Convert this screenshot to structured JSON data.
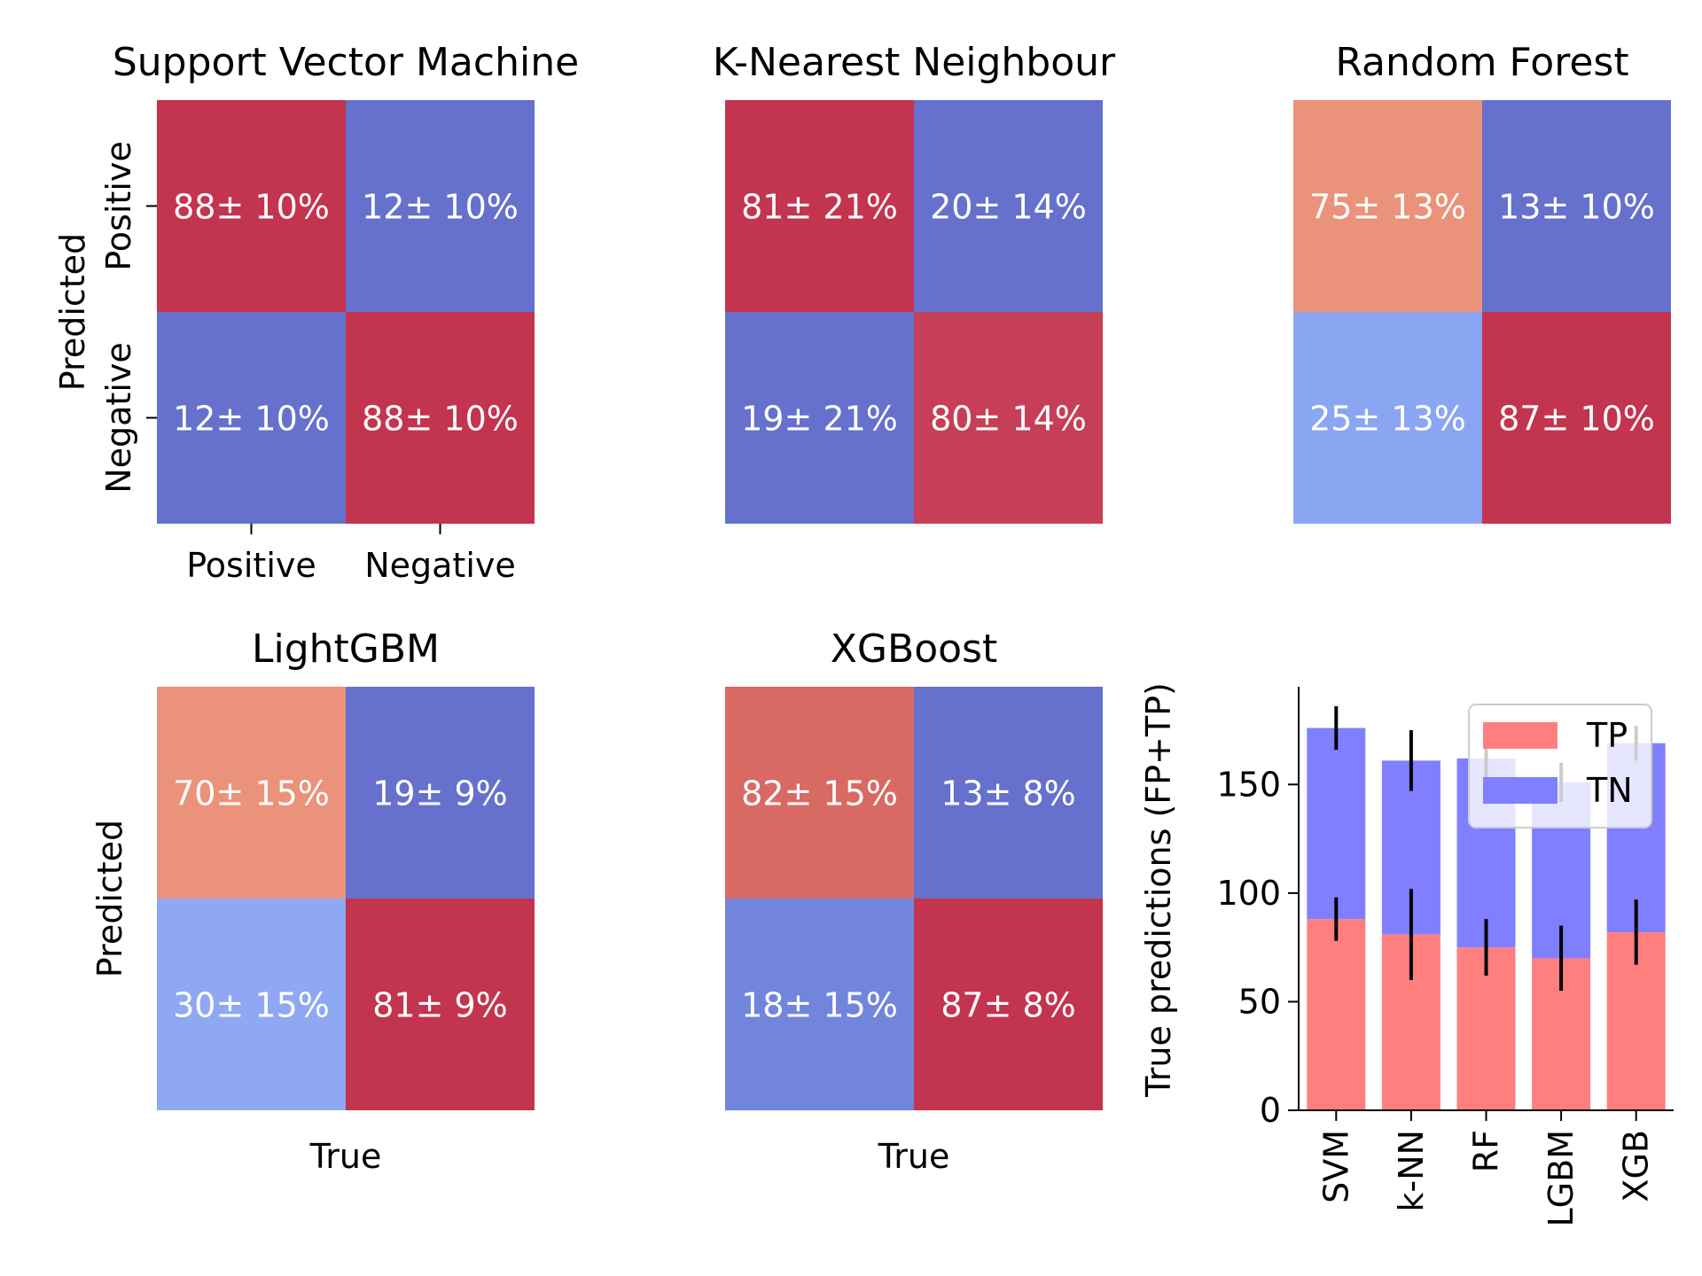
{
  "chart_data": [
    {
      "type": "heatmap",
      "title": "Support Vector Machine",
      "xlabel": "",
      "ylabel": "Predicted",
      "xticklabels": [
        "Positive",
        "Negative"
      ],
      "yticklabels": [
        "Positive",
        "Negative"
      ],
      "cells": [
        [
          "88± 10%",
          "12± 10%"
        ],
        [
          "12± 10%",
          "88± 10%"
        ]
      ],
      "colors": [
        [
          "#c3344f",
          "#6571cc"
        ],
        [
          "#6571cc",
          "#c3344f"
        ]
      ]
    },
    {
      "type": "heatmap",
      "title": "K-Nearest Neighbour",
      "xlabel": "",
      "ylabel": "",
      "xticklabels": [],
      "yticklabels": [],
      "cells": [
        [
          "81± 21%",
          "20± 14%"
        ],
        [
          "19± 21%",
          "80± 14%"
        ]
      ],
      "colors": [
        [
          "#c3344f",
          "#6571cc"
        ],
        [
          "#6571cc",
          "#c63f56"
        ]
      ]
    },
    {
      "type": "heatmap",
      "title": "Random Forest",
      "xlabel": "",
      "ylabel": "",
      "xticklabels": [],
      "yticklabels": [],
      "cells": [
        [
          "75± 13%",
          "13± 10%"
        ],
        [
          "25± 13%",
          "87± 10%"
        ]
      ],
      "colors": [
        [
          "#eb927a",
          "#6571cc"
        ],
        [
          "#8aa5f2",
          "#c3344f"
        ]
      ]
    },
    {
      "type": "heatmap",
      "title": "LightGBM",
      "xlabel": "True",
      "ylabel": "Predicted",
      "xticklabels": [],
      "yticklabels": [],
      "cells": [
        [
          "70± 15%",
          "19± 9%"
        ],
        [
          "30± 15%",
          "81± 9%"
        ]
      ],
      "colors": [
        [
          "#eb927a",
          "#6571cc"
        ],
        [
          "#8ea8f4",
          "#c3344f"
        ]
      ]
    },
    {
      "type": "heatmap",
      "title": "XGBoost",
      "xlabel": "True",
      "ylabel": "",
      "xticklabels": [],
      "yticklabels": [],
      "cells": [
        [
          "82± 15%",
          "13± 8%"
        ],
        [
          "18± 15%",
          "87± 8%"
        ]
      ],
      "colors": [
        [
          "#d96a63",
          "#6571cc"
        ],
        [
          "#7285dd",
          "#c3344f"
        ]
      ]
    },
    {
      "type": "bar",
      "stacked": true,
      "title": "",
      "xlabel": "",
      "ylabel": "True predictions (FP+TP)",
      "categories": [
        "SVM",
        "k-NN",
        "RF",
        "LGBM",
        "XGB"
      ],
      "series": [
        {
          "name": "TP",
          "color": "#ff7f7f",
          "values": [
            88,
            81,
            75,
            70,
            82
          ],
          "errors": [
            10,
            21,
            13,
            15,
            15
          ]
        },
        {
          "name": "TN",
          "color": "#7f7fff",
          "values": [
            88,
            80,
            87,
            81,
            87
          ],
          "errors": [
            10,
            14,
            10,
            9,
            8
          ]
        }
      ],
      "ylim": [
        0,
        195
      ],
      "yticks": [
        0,
        50,
        100,
        150
      ],
      "legend": "top-right"
    }
  ]
}
